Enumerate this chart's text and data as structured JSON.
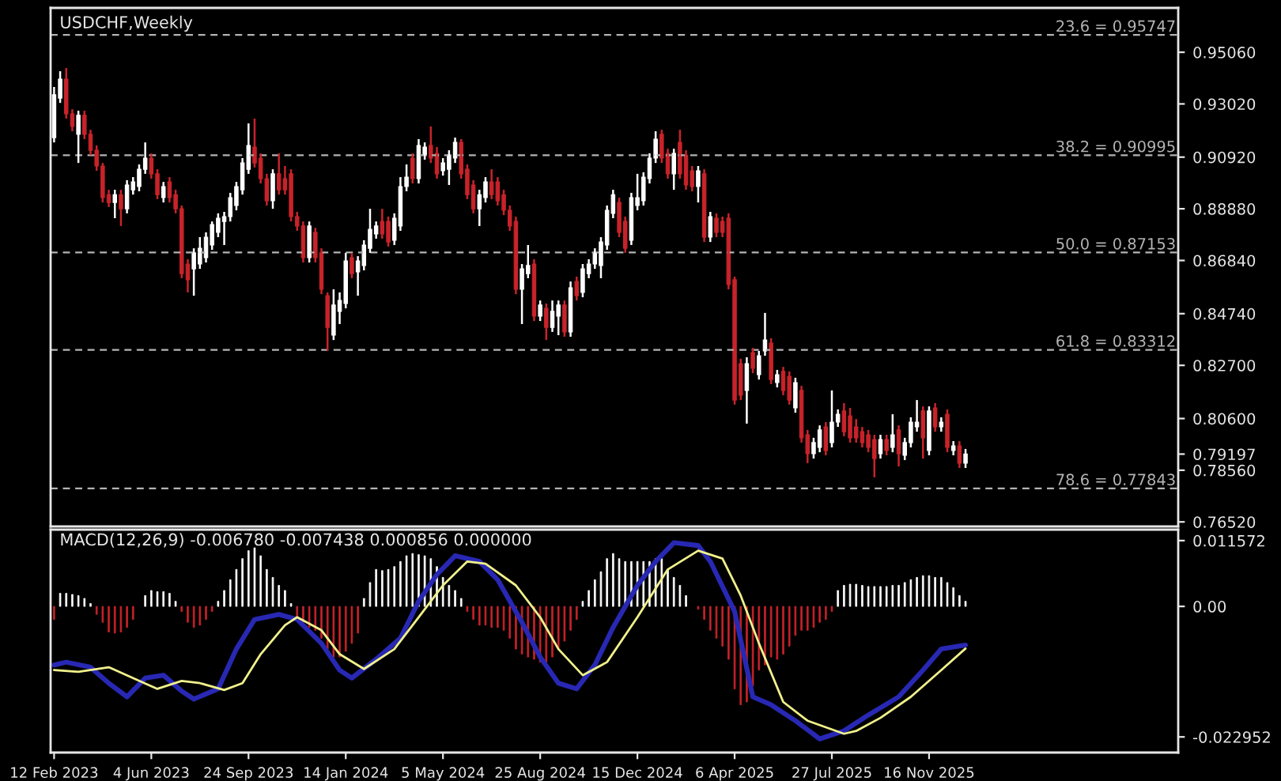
{
  "chart_data": [
    {
      "type": "candlestick",
      "title": "USDCHF,Weekly",
      "tick_labels": "y",
      "xlim": [
        "2023-02-08",
        "2026-08-30"
      ],
      "ylim": [
        0.7634,
        0.9681
      ],
      "yticks": [
        {
          "value": 0.9506,
          "label": "0.95060"
        },
        {
          "value": 0.9302,
          "label": "0.93020"
        },
        {
          "value": 0.9092,
          "label": "0.90920"
        },
        {
          "value": 0.8888,
          "label": "0.88880"
        },
        {
          "value": 0.8684,
          "label": "0.86840"
        },
        {
          "value": 0.8474,
          "label": "0.84740"
        },
        {
          "value": 0.827,
          "label": "0.82700"
        },
        {
          "value": 0.806,
          "label": "0.80600"
        },
        {
          "value": 0.79197,
          "label": "0.79197"
        },
        {
          "value": 0.7856,
          "label": "0.78560"
        },
        {
          "value": 0.7652,
          "label": "0.76520"
        }
      ],
      "ref_lines": [
        {
          "axis": "y",
          "value": 0.95747,
          "label": "23.6 = 0.95747",
          "color": "#b4b4b4",
          "line_style": "dashed"
        },
        {
          "axis": "y",
          "value": 0.90995,
          "label": "38.2 = 0.90995",
          "color": "#b4b4b4",
          "line_style": "dashed"
        },
        {
          "axis": "y",
          "value": 0.87153,
          "label": "50.0 = 0.87153",
          "color": "#b4b4b4",
          "line_style": "dashed"
        },
        {
          "axis": "y",
          "value": 0.83312,
          "label": "61.8 = 0.83312",
          "color": "#b4b4b4",
          "line_style": "dashed"
        },
        {
          "axis": "y",
          "value": 0.77843,
          "label": "78.6 = 0.77843",
          "color": "#b4b4b4",
          "line_style": "dashed"
        }
      ],
      "x": [
        "2023-02-12",
        "2023-02-19",
        "2023-02-26",
        "2023-03-05",
        "2023-03-12",
        "2023-03-19",
        "2023-03-26",
        "2023-04-02",
        "2023-04-09",
        "2023-04-16",
        "2023-04-23",
        "2023-04-30",
        "2023-05-07",
        "2023-05-14",
        "2023-05-21",
        "2023-05-28",
        "2023-06-04",
        "2023-06-11",
        "2023-06-18",
        "2023-06-25",
        "2023-07-02",
        "2023-07-09",
        "2023-07-16",
        "2023-07-23",
        "2023-07-30",
        "2023-08-06",
        "2023-08-13",
        "2023-08-20",
        "2023-08-27",
        "2023-09-03",
        "2023-09-10",
        "2023-09-17",
        "2023-09-24",
        "2023-10-01",
        "2023-10-08",
        "2023-10-15",
        "2023-10-22",
        "2023-10-29",
        "2023-11-05",
        "2023-11-12",
        "2023-11-19",
        "2023-11-26",
        "2023-12-03",
        "2023-12-10",
        "2023-12-17",
        "2023-12-24",
        "2023-12-31",
        "2024-01-07",
        "2024-01-14",
        "2024-01-21",
        "2024-01-28",
        "2024-02-04",
        "2024-02-11",
        "2024-02-18",
        "2024-02-25",
        "2024-03-03",
        "2024-03-10",
        "2024-03-17",
        "2024-03-24",
        "2024-03-31",
        "2024-04-07",
        "2024-04-14",
        "2024-04-21",
        "2024-04-28",
        "2024-05-05",
        "2024-05-12",
        "2024-05-19",
        "2024-05-26",
        "2024-06-02",
        "2024-06-09",
        "2024-06-16",
        "2024-06-23",
        "2024-06-30",
        "2024-07-07",
        "2024-07-14",
        "2024-07-21",
        "2024-07-28",
        "2024-08-04",
        "2024-08-11",
        "2024-08-18",
        "2024-08-25",
        "2024-09-01",
        "2024-09-08",
        "2024-09-15",
        "2024-09-22",
        "2024-09-29",
        "2024-10-06",
        "2024-10-13",
        "2024-10-20",
        "2024-10-27",
        "2024-11-03",
        "2024-11-10",
        "2024-11-17",
        "2024-11-24",
        "2024-12-01",
        "2024-12-08",
        "2024-12-15",
        "2024-12-22",
        "2024-12-29",
        "2025-01-05",
        "2025-01-12",
        "2025-01-19",
        "2025-01-26",
        "2025-02-02",
        "2025-02-09",
        "2025-02-16",
        "2025-02-23",
        "2025-03-02",
        "2025-03-09",
        "2025-03-16",
        "2025-03-23",
        "2025-03-30",
        "2025-04-06",
        "2025-04-13",
        "2025-04-20",
        "2025-04-27",
        "2025-05-04",
        "2025-05-11",
        "2025-05-18",
        "2025-05-25",
        "2025-06-01",
        "2025-06-08",
        "2025-06-15",
        "2025-06-22",
        "2025-06-29",
        "2025-07-06",
        "2025-07-13",
        "2025-07-20",
        "2025-07-27",
        "2025-08-03",
        "2025-08-10",
        "2025-08-17",
        "2025-08-24",
        "2025-08-31",
        "2025-09-07",
        "2025-09-14",
        "2025-09-21",
        "2025-09-28",
        "2025-10-05",
        "2025-10-12",
        "2025-10-19",
        "2025-10-26",
        "2025-11-02",
        "2025-11-09",
        "2025-11-16",
        "2025-11-23",
        "2025-11-30",
        "2025-12-07",
        "2025-12-14",
        "2025-12-21",
        "2025-12-28"
      ],
      "ohlc": [
        [
          0.9169,
          0.9369,
          0.915,
          0.9338
        ],
        [
          0.9325,
          0.9431,
          0.9306,
          0.94
        ],
        [
          0.94,
          0.9444,
          0.9244,
          0.9263
        ],
        [
          0.9263,
          0.9281,
          0.9194,
          0.9213
        ],
        [
          0.9182,
          0.9275,
          0.9069,
          0.9257
        ],
        [
          0.9257,
          0.9275,
          0.9163,
          0.9182
        ],
        [
          0.9182,
          0.92,
          0.91,
          0.9119
        ],
        [
          0.9119,
          0.9138,
          0.9038,
          0.9057
        ],
        [
          0.9057,
          0.9069,
          0.8913,
          0.8932
        ],
        [
          0.8944,
          0.8963,
          0.8895,
          0.8913
        ],
        [
          0.8913,
          0.8963,
          0.8851,
          0.8944
        ],
        [
          0.8944,
          0.8963,
          0.882,
          0.8888
        ],
        [
          0.8888,
          0.9001,
          0.887,
          0.8982
        ],
        [
          0.8963,
          0.9013,
          0.8944,
          0.8994
        ],
        [
          0.8976,
          0.9063,
          0.8957,
          0.9044
        ],
        [
          0.9044,
          0.915,
          0.9026,
          0.9088
        ],
        [
          0.9088,
          0.9107,
          0.9007,
          0.9026
        ],
        [
          0.9026,
          0.9044,
          0.8926,
          0.8944
        ],
        [
          0.8932,
          0.8994,
          0.8913,
          0.8976
        ],
        [
          0.8994,
          0.9013,
          0.8913,
          0.8932
        ],
        [
          0.8944,
          0.8963,
          0.887,
          0.8888
        ],
        [
          0.8888,
          0.8901,
          0.8614,
          0.8632
        ],
        [
          0.867,
          0.8689,
          0.8558,
          0.8608
        ],
        [
          0.8651,
          0.8732,
          0.8545,
          0.8714
        ],
        [
          0.867,
          0.8776,
          0.8651,
          0.8732
        ],
        [
          0.8695,
          0.8795,
          0.8676,
          0.8776
        ],
        [
          0.8745,
          0.8838,
          0.8726,
          0.8826
        ],
        [
          0.8795,
          0.887,
          0.8776,
          0.8851
        ],
        [
          0.8838,
          0.8876,
          0.8745,
          0.8857
        ],
        [
          0.8857,
          0.8951,
          0.8838,
          0.8932
        ],
        [
          0.8901,
          0.8994,
          0.8882,
          0.8976
        ],
        [
          0.8963,
          0.9088,
          0.8944,
          0.9069
        ],
        [
          0.9044,
          0.9225,
          0.9026,
          0.9138
        ],
        [
          0.9132,
          0.9244,
          0.9051,
          0.9069
        ],
        [
          0.9088,
          0.9107,
          0.8988,
          0.9007
        ],
        [
          0.9007,
          0.9026,
          0.8901,
          0.892
        ],
        [
          0.892,
          0.9044,
          0.8888,
          0.9026
        ],
        [
          0.9026,
          0.9107,
          0.8944,
          0.8963
        ],
        [
          0.9007,
          0.9057,
          0.8944,
          0.8963
        ],
        [
          0.9026,
          0.9044,
          0.8838,
          0.8857
        ],
        [
          0.8857,
          0.8876,
          0.8801,
          0.882
        ],
        [
          0.882,
          0.8838,
          0.8676,
          0.8695
        ],
        [
          0.8695,
          0.8838,
          0.8676,
          0.882
        ],
        [
          0.8795,
          0.8813,
          0.8676,
          0.8695
        ],
        [
          0.8714,
          0.8732,
          0.8551,
          0.857
        ],
        [
          0.8545,
          0.8558,
          0.8327,
          0.842
        ],
        [
          0.8389,
          0.857,
          0.837,
          0.8508
        ],
        [
          0.8483,
          0.8558,
          0.8433,
          0.8526
        ],
        [
          0.8514,
          0.8714,
          0.8495,
          0.8682
        ],
        [
          0.8695,
          0.8714,
          0.8614,
          0.8632
        ],
        [
          0.8639,
          0.8701,
          0.8545,
          0.8682
        ],
        [
          0.8664,
          0.8764,
          0.8645,
          0.8745
        ],
        [
          0.8732,
          0.8888,
          0.8714,
          0.8807
        ],
        [
          0.8789,
          0.8838,
          0.877,
          0.882
        ],
        [
          0.8838,
          0.8888,
          0.877,
          0.8789
        ],
        [
          0.8838,
          0.8857,
          0.8739,
          0.8757
        ],
        [
          0.8764,
          0.887,
          0.8745,
          0.8851
        ],
        [
          0.882,
          0.9013,
          0.8801,
          0.8976
        ],
        [
          0.8976,
          0.9063,
          0.8957,
          0.9013
        ],
        [
          0.9088,
          0.9107,
          0.8988,
          0.9007
        ],
        [
          0.9007,
          0.9163,
          0.8988,
          0.9138
        ],
        [
          0.91,
          0.915,
          0.9082,
          0.9132
        ],
        [
          0.9138,
          0.9213,
          0.9069,
          0.9088
        ],
        [
          0.9107,
          0.9132,
          0.9007,
          0.9026
        ],
        [
          0.9038,
          0.9088,
          0.9019,
          0.9069
        ],
        [
          0.9044,
          0.9119,
          0.8982,
          0.91
        ],
        [
          0.9088,
          0.9169,
          0.9069,
          0.915
        ],
        [
          0.915,
          0.9163,
          0.9007,
          0.9026
        ],
        [
          0.9044,
          0.9063,
          0.8926,
          0.8944
        ],
        [
          0.8982,
          0.9001,
          0.887,
          0.8888
        ],
        [
          0.8888,
          0.8963,
          0.882,
          0.8944
        ],
        [
          0.8932,
          0.9013,
          0.8913,
          0.8994
        ],
        [
          0.8994,
          0.9044,
          0.8926,
          0.8944
        ],
        [
          0.8994,
          0.9013,
          0.8901,
          0.892
        ],
        [
          0.8944,
          0.8963,
          0.8863,
          0.8882
        ],
        [
          0.8882,
          0.8901,
          0.8801,
          0.882
        ],
        [
          0.8838,
          0.8857,
          0.8551,
          0.857
        ],
        [
          0.857,
          0.867,
          0.8433,
          0.8651
        ],
        [
          0.8632,
          0.8745,
          0.8614,
          0.8664
        ],
        [
          0.867,
          0.8689,
          0.8445,
          0.8464
        ],
        [
          0.8464,
          0.8526,
          0.8445,
          0.8508
        ],
        [
          0.8495,
          0.8514,
          0.837,
          0.842
        ],
        [
          0.842,
          0.8526,
          0.8402,
          0.8483
        ],
        [
          0.8464,
          0.8526,
          0.8389,
          0.8508
        ],
        [
          0.8508,
          0.8526,
          0.8383,
          0.8402
        ],
        [
          0.8402,
          0.8601,
          0.8383,
          0.8576
        ],
        [
          0.8601,
          0.862,
          0.8526,
          0.8545
        ],
        [
          0.8558,
          0.867,
          0.8539,
          0.8651
        ],
        [
          0.8632,
          0.8689,
          0.8614,
          0.867
        ],
        [
          0.867,
          0.8732,
          0.8651,
          0.8714
        ],
        [
          0.8664,
          0.8776,
          0.8614,
          0.8757
        ],
        [
          0.8745,
          0.8901,
          0.8726,
          0.8882
        ],
        [
          0.887,
          0.8963,
          0.8851,
          0.8944
        ],
        [
          0.8913,
          0.8932,
          0.8776,
          0.8795
        ],
        [
          0.8838,
          0.8857,
          0.8714,
          0.8732
        ],
        [
          0.8764,
          0.8951,
          0.8745,
          0.8932
        ],
        [
          0.8901,
          0.9026,
          0.8882,
          0.8932
        ],
        [
          0.892,
          0.9032,
          0.8901,
          0.9013
        ],
        [
          0.9007,
          0.9107,
          0.8988,
          0.9088
        ],
        [
          0.9088,
          0.9194,
          0.9069,
          0.9163
        ],
        [
          0.9182,
          0.92,
          0.9069,
          0.9088
        ],
        [
          0.9107,
          0.9125,
          0.9007,
          0.9026
        ],
        [
          0.9026,
          0.9125,
          0.8963,
          0.9107
        ],
        [
          0.915,
          0.92,
          0.9007,
          0.9026
        ],
        [
          0.91,
          0.9119,
          0.8963,
          0.8982
        ],
        [
          0.9038,
          0.9057,
          0.8957,
          0.8976
        ],
        [
          0.8976,
          0.9057,
          0.8913,
          0.9038
        ],
        [
          0.9026,
          0.9044,
          0.8757,
          0.8776
        ],
        [
          0.8776,
          0.8876,
          0.8757,
          0.8857
        ],
        [
          0.8851,
          0.887,
          0.8776,
          0.8795
        ],
        [
          0.8838,
          0.8857,
          0.8776,
          0.8795
        ],
        [
          0.8851,
          0.887,
          0.857,
          0.8589
        ],
        [
          0.8608,
          0.862,
          0.8115,
          0.8133
        ],
        [
          0.8277,
          0.8296,
          0.8133,
          0.8152
        ],
        [
          0.8171,
          0.8302,
          0.804,
          0.8277
        ],
        [
          0.832,
          0.8339,
          0.8239,
          0.8258
        ],
        [
          0.8233,
          0.8327,
          0.8214,
          0.8308
        ],
        [
          0.8327,
          0.8477,
          0.8308,
          0.837
        ],
        [
          0.8358,
          0.8377,
          0.8196,
          0.8214
        ],
        [
          0.8202,
          0.8252,
          0.8183,
          0.8233
        ],
        [
          0.8246,
          0.8264,
          0.8152,
          0.8171
        ],
        [
          0.8227,
          0.8246,
          0.8115,
          0.8133
        ],
        [
          0.8102,
          0.8221,
          0.8083,
          0.8202
        ],
        [
          0.8171,
          0.8189,
          0.7965,
          0.7984
        ],
        [
          0.7996,
          0.8015,
          0.7884,
          0.7921
        ],
        [
          0.7921,
          0.7984,
          0.7902,
          0.7965
        ],
        [
          0.7946,
          0.8033,
          0.7927,
          0.8015
        ],
        [
          0.8027,
          0.8046,
          0.7915,
          0.7934
        ],
        [
          0.7965,
          0.8171,
          0.7946,
          0.8046
        ],
        [
          0.8046,
          0.8096,
          0.8027,
          0.8077
        ],
        [
          0.809,
          0.8121,
          0.799,
          0.8008
        ],
        [
          0.8071,
          0.8102,
          0.7965,
          0.7984
        ],
        [
          0.8027,
          0.8058,
          0.7965,
          0.7984
        ],
        [
          0.8008,
          0.8027,
          0.7946,
          0.7965
        ],
        [
          0.7996,
          0.8015,
          0.7927,
          0.7946
        ],
        [
          0.7977,
          0.7996,
          0.7828,
          0.7902
        ],
        [
          0.7921,
          0.7996,
          0.7902,
          0.7977
        ],
        [
          0.7977,
          0.7996,
          0.7915,
          0.7934
        ],
        [
          0.7946,
          0.8077,
          0.7927,
          0.7996
        ],
        [
          0.8015,
          0.8033,
          0.7871,
          0.7921
        ],
        [
          0.7915,
          0.7984,
          0.7896,
          0.7965
        ],
        [
          0.7965,
          0.8065,
          0.7946,
          0.8046
        ],
        [
          0.8027,
          0.8133,
          0.8008,
          0.8046
        ],
        [
          0.809,
          0.8108,
          0.7902,
          0.7984
        ],
        [
          0.7934,
          0.8108,
          0.7915,
          0.809
        ],
        [
          0.8102,
          0.8121,
          0.8008,
          0.8027
        ],
        [
          0.8027,
          0.8065,
          0.8008,
          0.8046
        ],
        [
          0.8077,
          0.8096,
          0.7927,
          0.7946
        ],
        [
          0.7934,
          0.7971,
          0.7915,
          0.7952
        ],
        [
          0.7952,
          0.7971,
          0.7865,
          0.7884
        ],
        [
          0.7884,
          0.794,
          0.7865,
          0.792
        ]
      ]
    },
    {
      "type": "bar",
      "title": "MACD(12,26,9) -0.006780 -0.007438 0.000856 0.000000",
      "xlim": [
        "2023-02-08",
        "2026-08-30"
      ],
      "ylim": [
        -0.0257,
        0.0135
      ],
      "xticks": [
        {
          "value": "2023-02-12",
          "label": "12 Feb 2023"
        },
        {
          "value": "2023-06-04",
          "label": "4 Jun 2023"
        },
        {
          "value": "2023-09-24",
          "label": "24 Sep 2023"
        },
        {
          "value": "2024-01-14",
          "label": "14 Jan 2024"
        },
        {
          "value": "2024-05-05",
          "label": "5 May 2024"
        },
        {
          "value": "2024-08-25",
          "label": "25 Aug 2024"
        },
        {
          "value": "2024-12-15",
          "label": "15 Dec 2024"
        },
        {
          "value": "2025-04-06",
          "label": "6 Apr 2025"
        },
        {
          "value": "2025-07-27",
          "label": "27 Jul 2025"
        },
        {
          "value": "2025-11-16",
          "label": "16 Nov 2025"
        }
      ],
      "yticks": [
        0.011572,
        {
          "value": 0,
          "label": "0.00"
        },
        -0.022952
      ],
      "x": [
        "2023-02-12",
        "2023-02-19",
        "2023-02-26",
        "2023-03-05",
        "2023-03-12",
        "2023-03-19",
        "2023-03-26",
        "2023-04-02",
        "2023-04-09",
        "2023-04-16",
        "2023-04-23",
        "2023-04-30",
        "2023-05-07",
        "2023-05-14",
        "2023-05-21",
        "2023-05-28",
        "2023-06-04",
        "2023-06-11",
        "2023-06-18",
        "2023-06-25",
        "2023-07-02",
        "2023-07-09",
        "2023-07-16",
        "2023-07-23",
        "2023-07-30",
        "2023-08-06",
        "2023-08-13",
        "2023-08-20",
        "2023-08-27",
        "2023-09-03",
        "2023-09-10",
        "2023-09-17",
        "2023-09-24",
        "2023-10-01",
        "2023-10-08",
        "2023-10-15",
        "2023-10-22",
        "2023-10-29",
        "2023-11-05",
        "2023-11-12",
        "2023-11-19",
        "2023-11-26",
        "2023-12-03",
        "2023-12-10",
        "2023-12-17",
        "2023-12-24",
        "2023-12-31",
        "2024-01-07",
        "2024-01-14",
        "2024-01-21",
        "2024-01-28",
        "2024-02-04",
        "2024-02-11",
        "2024-02-18",
        "2024-02-25",
        "2024-03-03",
        "2024-03-10",
        "2024-03-17",
        "2024-03-24",
        "2024-03-31",
        "2024-04-07",
        "2024-04-14",
        "2024-04-21",
        "2024-04-28",
        "2024-05-05",
        "2024-05-12",
        "2024-05-19",
        "2024-05-26",
        "2024-06-02",
        "2024-06-09",
        "2024-06-16",
        "2024-06-23",
        "2024-06-30",
        "2024-07-07",
        "2024-07-14",
        "2024-07-21",
        "2024-07-28",
        "2024-08-04",
        "2024-08-11",
        "2024-08-18",
        "2024-08-25",
        "2024-09-01",
        "2024-09-08",
        "2024-09-15",
        "2024-09-22",
        "2024-09-29",
        "2024-10-06",
        "2024-10-13",
        "2024-10-20",
        "2024-10-27",
        "2024-11-03",
        "2024-11-10",
        "2024-11-17",
        "2024-11-24",
        "2024-12-01",
        "2024-12-08",
        "2024-12-15",
        "2024-12-22",
        "2024-12-29",
        "2025-01-05",
        "2025-01-12",
        "2025-01-19",
        "2025-01-26",
        "2025-02-02",
        "2025-02-09",
        "2025-02-16",
        "2025-02-23",
        "2025-03-02",
        "2025-03-09",
        "2025-03-16",
        "2025-03-23",
        "2025-03-30",
        "2025-04-06",
        "2025-04-13",
        "2025-04-20",
        "2025-04-27",
        "2025-05-04",
        "2025-05-11",
        "2025-05-18",
        "2025-05-25",
        "2025-06-01",
        "2025-06-08",
        "2025-06-15",
        "2025-06-22",
        "2025-06-29",
        "2025-07-06",
        "2025-07-13",
        "2025-07-20",
        "2025-07-27",
        "2025-08-03",
        "2025-08-10",
        "2025-08-17",
        "2025-08-24",
        "2025-08-31",
        "2025-09-07",
        "2025-09-14",
        "2025-09-21",
        "2025-09-28",
        "2025-10-05",
        "2025-10-12",
        "2025-10-19",
        "2025-10-26",
        "2025-11-02",
        "2025-11-09",
        "2025-11-16",
        "2025-11-23",
        "2025-11-30",
        "2025-12-07",
        "2025-12-14",
        "2025-12-21",
        "2025-12-28"
      ],
      "series": [
        {
          "type": "bar",
          "color": "#ffffff",
          "values": [
            null,
            0.0023,
            0.0023,
            0.0021,
            0.0019,
            0.0014,
            0.0005,
            null,
            null,
            null,
            null,
            null,
            null,
            null,
            null,
            0.0019,
            0.0028,
            0.0026,
            0.0026,
            0.0023,
            0.0009,
            null,
            null,
            null,
            null,
            null,
            null,
            0.0009,
            0.0028,
            0.0047,
            0.0065,
            0.0084,
            0.0098,
            0.0103,
            0.0089,
            0.0065,
            0.0051,
            0.0037,
            0.0028,
            0.0005,
            null,
            null,
            null,
            null,
            null,
            null,
            null,
            null,
            null,
            null,
            null,
            0.0014,
            0.0042,
            0.0065,
            0.0063,
            0.0065,
            0.007,
            0.0079,
            0.0089,
            0.0093,
            0.0091,
            0.0089,
            0.0084,
            0.007,
            0.0051,
            0.0037,
            0.0028,
            0.0014,
            null,
            null,
            null,
            null,
            null,
            null,
            null,
            null,
            null,
            null,
            null,
            null,
            null,
            null,
            null,
            null,
            null,
            null,
            null,
            0.0009,
            0.0028,
            0.0047,
            0.0061,
            0.0084,
            0.0093,
            0.0084,
            0.0079,
            0.0079,
            0.0079,
            0.0079,
            0.0079,
            0.0084,
            0.0084,
            0.0065,
            0.0051,
            0.0037,
            0.0019,
            null,
            null,
            null,
            null,
            null,
            null,
            null,
            null,
            null,
            null,
            null,
            null,
            null,
            null,
            null,
            null,
            null,
            null,
            null,
            null,
            null,
            null,
            null,
            null,
            0.0028,
            0.0037,
            0.0039,
            0.0039,
            0.0037,
            0.0035,
            0.0035,
            0.0035,
            0.0035,
            0.0037,
            0.0037,
            0.0042,
            0.0047,
            0.0051,
            0.0054,
            0.0054,
            0.0051,
            0.0051,
            0.0042,
            0.0033,
            0.0019,
            0.0009
          ]
        },
        {
          "type": "bar",
          "color": "#c8232a",
          "values": [
            -0.0023,
            null,
            null,
            null,
            null,
            null,
            null,
            -0.0014,
            -0.0028,
            -0.0045,
            -0.0047,
            -0.0045,
            -0.0037,
            -0.0023,
            null,
            null,
            null,
            null,
            null,
            null,
            null,
            -0.0009,
            -0.0028,
            -0.0037,
            -0.0033,
            -0.0023,
            -0.0009,
            null,
            null,
            null,
            null,
            null,
            null,
            null,
            null,
            null,
            null,
            null,
            null,
            null,
            -0.0019,
            -0.0028,
            -0.0037,
            -0.0042,
            -0.0056,
            -0.0075,
            -0.0089,
            -0.0089,
            -0.0079,
            -0.0065,
            -0.0047,
            null,
            null,
            null,
            null,
            null,
            null,
            null,
            null,
            null,
            null,
            null,
            null,
            null,
            null,
            null,
            null,
            null,
            -0.0009,
            -0.0023,
            -0.0033,
            -0.0033,
            -0.0037,
            -0.0037,
            -0.0042,
            -0.0056,
            -0.0075,
            -0.0084,
            -0.0089,
            -0.0093,
            -0.0098,
            -0.0098,
            -0.0089,
            -0.0075,
            -0.0061,
            -0.0042,
            -0.0023,
            null,
            null,
            null,
            null,
            null,
            null,
            null,
            null,
            null,
            null,
            null,
            null,
            null,
            null,
            null,
            null,
            null,
            null,
            null,
            -0.0005,
            -0.0023,
            -0.0042,
            -0.0056,
            -0.007,
            -0.0093,
            -0.0145,
            -0.0173,
            -0.0168,
            -0.014,
            -0.0112,
            -0.0103,
            -0.0089,
            -0.0093,
            -0.0084,
            -0.007,
            -0.0051,
            -0.0042,
            -0.0042,
            -0.0037,
            -0.0028,
            -0.0023,
            -0.0009,
            null,
            null,
            null,
            null,
            null,
            null,
            null,
            null,
            null,
            null,
            null,
            null,
            null,
            null,
            null,
            null,
            null,
            null,
            null,
            null,
            null,
            null
          ]
        },
        {
          "type": "line",
          "color": "#2828b4",
          "x": [
            "2023-02-12",
            "2023-02-26",
            "2023-03-26",
            "2023-04-16",
            "2023-05-07",
            "2023-05-28",
            "2023-06-18",
            "2023-07-09",
            "2023-07-23",
            "2023-08-20",
            "2023-09-10",
            "2023-10-01",
            "2023-10-29",
            "2023-11-19",
            "2023-12-17",
            "2024-01-07",
            "2024-01-21",
            "2024-02-18",
            "2024-03-17",
            "2024-04-07",
            "2024-04-28",
            "2024-05-19",
            "2024-06-16",
            "2024-07-07",
            "2024-08-04",
            "2024-08-25",
            "2024-09-15",
            "2024-10-06",
            "2024-10-27",
            "2024-11-17",
            "2024-12-15",
            "2025-01-05",
            "2025-01-26",
            "2025-02-23",
            "2025-03-09",
            "2025-04-06",
            "2025-04-27",
            "2025-05-18",
            "2025-06-15",
            "2025-07-13",
            "2025-08-10",
            "2025-09-07",
            "2025-10-12",
            "2025-11-09",
            "2025-11-30",
            "2025-12-28"
          ],
          "values": [
            -0.0103,
            -0.0098,
            -0.0107,
            -0.0135,
            -0.0159,
            -0.0126,
            -0.0121,
            -0.0149,
            -0.0163,
            -0.0145,
            -0.0075,
            -0.0023,
            -0.0014,
            -0.0023,
            -0.0065,
            -0.0112,
            -0.0126,
            -0.0093,
            -0.0056,
            0.0009,
            0.0056,
            0.0089,
            0.0079,
            0.0047,
            -0.0028,
            -0.0089,
            -0.0135,
            -0.0145,
            -0.0103,
            -0.0037,
            0.0037,
            0.0079,
            0.0112,
            0.0107,
            0.0079,
            -0.0009,
            -0.0159,
            -0.0173,
            -0.0201,
            -0.0233,
            -0.0219,
            -0.0191,
            -0.0159,
            -0.0112,
            -0.0075,
            -0.0068
          ]
        },
        {
          "type": "line",
          "color": "#f0f08c",
          "x": [
            "2023-02-12",
            "2023-03-12",
            "2023-04-16",
            "2023-05-21",
            "2023-06-11",
            "2023-07-09",
            "2023-07-30",
            "2023-08-27",
            "2023-09-17",
            "2023-10-08",
            "2023-11-05",
            "2023-11-19",
            "2023-12-17",
            "2024-01-07",
            "2024-02-04",
            "2024-03-10",
            "2024-04-07",
            "2024-05-05",
            "2024-06-02",
            "2024-06-23",
            "2024-07-28",
            "2024-08-25",
            "2024-09-15",
            "2024-10-13",
            "2024-11-10",
            "2024-12-15",
            "2025-01-19",
            "2025-02-23",
            "2025-03-23",
            "2025-04-13",
            "2025-05-04",
            "2025-06-01",
            "2025-06-29",
            "2025-08-10",
            "2025-08-24",
            "2025-09-21",
            "2025-10-26",
            "2025-11-30",
            "2025-12-28"
          ],
          "values": [
            -0.0112,
            -0.0115,
            -0.0107,
            -0.0131,
            -0.0145,
            -0.0131,
            -0.0135,
            -0.0147,
            -0.0135,
            -0.0084,
            -0.0033,
            -0.0019,
            -0.0042,
            -0.0084,
            -0.011,
            -0.0075,
            -0.0019,
            0.0037,
            0.0079,
            0.0075,
            0.0037,
            -0.0019,
            -0.0075,
            -0.0121,
            -0.0098,
            -0.0019,
            0.0065,
            0.0098,
            0.0084,
            0.0019,
            -0.0065,
            -0.0168,
            -0.0201,
            -0.0224,
            -0.0219,
            -0.0196,
            -0.0159,
            -0.0112,
            -0.0074
          ]
        }
      ]
    }
  ]
}
